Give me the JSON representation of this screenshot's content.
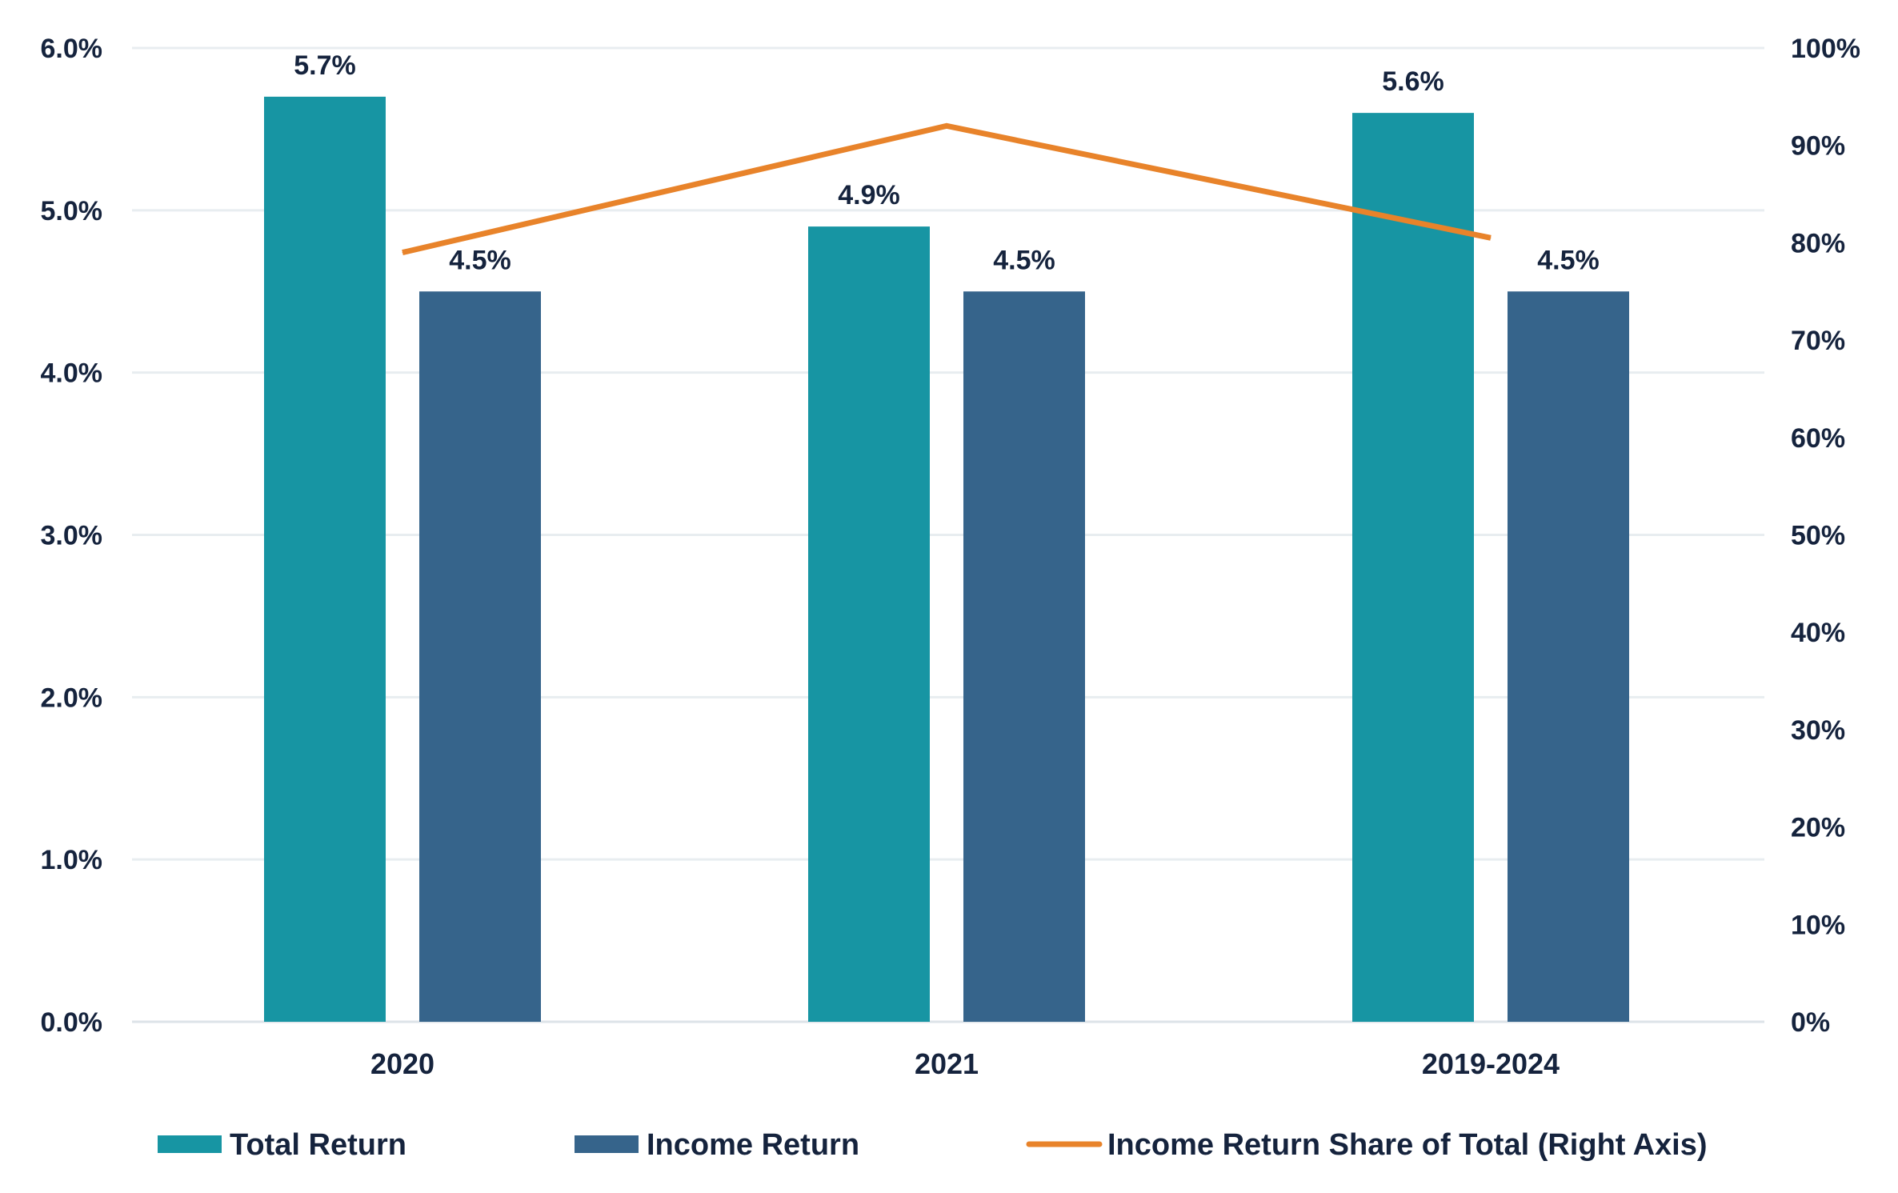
{
  "chart_data": {
    "type": "bar",
    "categories": [
      "2020",
      "2021",
      "2019-2024"
    ],
    "series": [
      {
        "name": "Total Return",
        "kind": "bar",
        "axis": "left",
        "color": "#1795a3",
        "values": [
          5.7,
          4.9,
          5.6
        ],
        "labels": [
          "5.7%",
          "4.9%",
          "5.6%"
        ]
      },
      {
        "name": "Income Return",
        "kind": "bar",
        "axis": "left",
        "color": "#36648b",
        "values": [
          4.5,
          4.5,
          4.5
        ],
        "labels": [
          "4.5%",
          "4.5%",
          "4.5%"
        ]
      },
      {
        "name": "Income Return Share of Total (Right Axis)",
        "kind": "line",
        "axis": "right",
        "color": "#e8832a",
        "values": [
          79,
          92,
          80.5
        ]
      }
    ],
    "left_axis": {
      "ylim": [
        0,
        6
      ],
      "ticks": [
        "0.0%",
        "1.0%",
        "2.0%",
        "3.0%",
        "4.0%",
        "5.0%",
        "6.0%"
      ]
    },
    "right_axis": {
      "ylim": [
        0,
        100
      ],
      "ticks": [
        "0%",
        "10%",
        "20%",
        "30%",
        "40%",
        "50%",
        "60%",
        "70%",
        "80%",
        "90%",
        "100%"
      ]
    },
    "grid": true,
    "legend": "bottom"
  },
  "colors": {
    "gridline": "#e8edf0",
    "axis_line": "#dde3e8",
    "text": "#15233d"
  }
}
